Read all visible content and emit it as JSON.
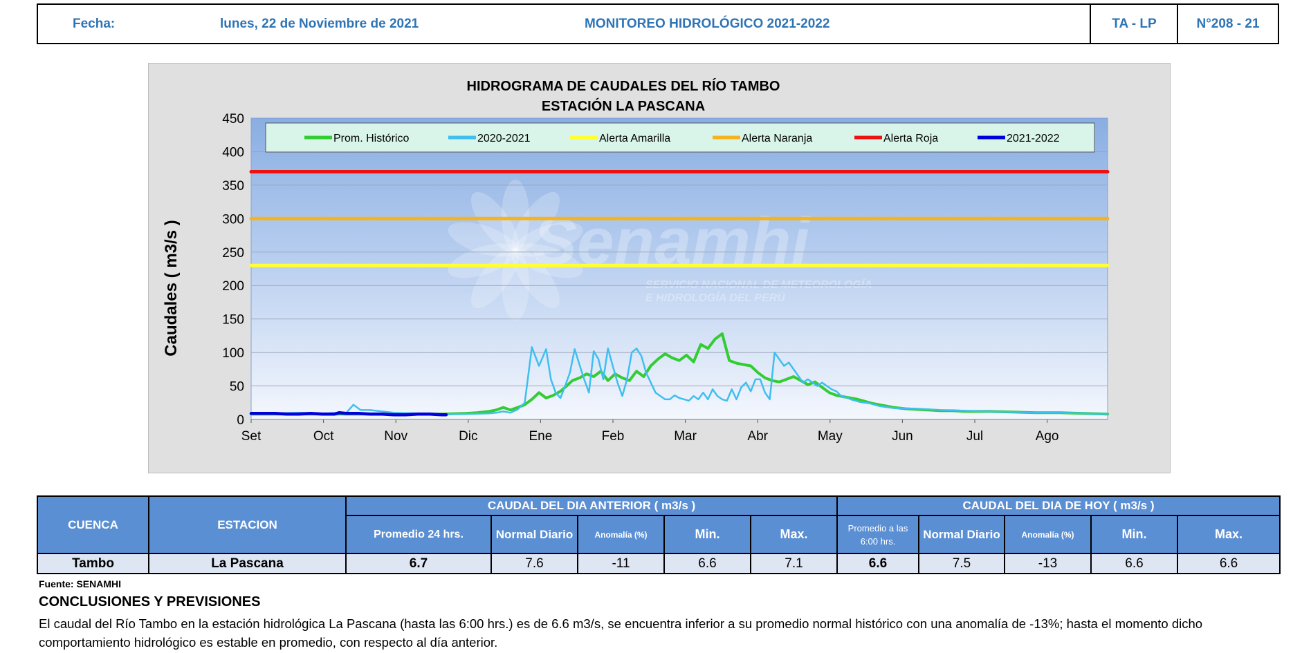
{
  "header": {
    "fecha_label": "Fecha:",
    "fecha_value": "lunes, 22 de Noviembre de 2021",
    "title": "MONITOREO HIDROLÓGICO 2021-2022",
    "code": "TA - LP",
    "number": "N°208 - 21"
  },
  "chart_data": {
    "type": "line",
    "title_line1": "HIDROGRAMA DE CAUDALES DEL RÍO TAMBO",
    "title_line2": "ESTACIÓN LA PASCANA",
    "ylabel": "Caudales ( m3/s )",
    "ylim": [
      0,
      450
    ],
    "yticks": [
      0,
      50,
      100,
      150,
      200,
      250,
      300,
      350,
      400,
      450
    ],
    "xticks": [
      "Set",
      "Oct",
      "Nov",
      "Dic",
      "Ene",
      "Feb",
      "Mar",
      "Abr",
      "May",
      "Jun",
      "Jul",
      "Ago"
    ],
    "xlim_days": [
      0,
      360
    ],
    "watermark": "Senamhi",
    "watermark_sub1": "SERVICIO NACIONAL DE METEOROLOGÍA",
    "watermark_sub2": "E HIDROLOGÍA DEL PERÚ",
    "legend_position": "top",
    "grid": true,
    "series": [
      {
        "name": "Prom. Histórico",
        "color": "#33cc33",
        "width": 4,
        "x": [
          0,
          30,
          60,
          80,
          90,
          95,
          100,
          103,
          106,
          109,
          112,
          115,
          118,
          121,
          124,
          127,
          130,
          132,
          135,
          138,
          141,
          144,
          147,
          150,
          153,
          156,
          159,
          162,
          165,
          168,
          171,
          174,
          177,
          180,
          183,
          186,
          189,
          192,
          195,
          198,
          201,
          204,
          207,
          210,
          213,
          216,
          219,
          222,
          225,
          228,
          231,
          234,
          237,
          240,
          243,
          246,
          249,
          252,
          255,
          258,
          261,
          264,
          267,
          270,
          275,
          280,
          285,
          290,
          295,
          300,
          310,
          320,
          330,
          340,
          350,
          360
        ],
        "y": [
          8,
          8,
          8,
          8,
          9,
          10,
          12,
          14,
          18,
          14,
          18,
          22,
          30,
          40,
          32,
          36,
          42,
          48,
          58,
          62,
          68,
          64,
          72,
          58,
          68,
          62,
          58,
          72,
          64,
          80,
          90,
          98,
          92,
          88,
          96,
          86,
          112,
          106,
          120,
          128,
          88,
          84,
          82,
          80,
          70,
          62,
          58,
          56,
          60,
          64,
          58,
          52,
          56,
          48,
          40,
          36,
          34,
          32,
          30,
          27,
          24,
          22,
          20,
          18,
          16,
          15,
          14,
          13,
          13,
          12,
          12,
          11,
          10,
          10,
          9,
          8
        ]
      },
      {
        "name": "2020-2021",
        "color": "#3fbfef",
        "width": 2.5,
        "x": [
          0,
          10,
          20,
          30,
          40,
          43,
          46,
          50,
          55,
          60,
          70,
          80,
          90,
          100,
          103,
          106,
          109,
          112,
          115,
          118,
          121,
          124,
          126,
          128,
          130,
          132,
          134,
          136,
          138,
          140,
          142,
          144,
          146,
          148,
          150,
          152,
          154,
          156,
          158,
          160,
          162,
          164,
          166,
          168,
          170,
          172,
          174,
          176,
          178,
          180,
          182,
          184,
          186,
          188,
          190,
          192,
          194,
          196,
          198,
          200,
          202,
          204,
          206,
          208,
          210,
          212,
          214,
          216,
          218,
          220,
          222,
          224,
          226,
          228,
          230,
          232,
          234,
          236,
          238,
          240,
          242,
          244,
          246,
          248,
          250,
          252,
          254,
          256,
          258,
          260,
          262,
          264,
          266,
          268,
          270,
          280,
          290,
          300,
          310,
          320,
          330,
          340,
          350,
          360
        ],
        "y": [
          9,
          9,
          10,
          9,
          10,
          22,
          14,
          14,
          12,
          10,
          9,
          8,
          8,
          9,
          10,
          12,
          10,
          15,
          25,
          108,
          80,
          105,
          60,
          40,
          32,
          50,
          70,
          105,
          82,
          60,
          40,
          102,
          90,
          60,
          106,
          80,
          55,
          35,
          60,
          100,
          106,
          95,
          70,
          55,
          40,
          35,
          30,
          30,
          36,
          32,
          30,
          28,
          35,
          30,
          40,
          30,
          45,
          35,
          30,
          28,
          45,
          30,
          48,
          55,
          42,
          60,
          60,
          40,
          30,
          100,
          90,
          80,
          85,
          75,
          65,
          55,
          60,
          55,
          50,
          55,
          50,
          45,
          42,
          35,
          33,
          30,
          28,
          26,
          25,
          24,
          22,
          20,
          19,
          18,
          17,
          16,
          14,
          13,
          12,
          11,
          10,
          10,
          9,
          8
        ]
      },
      {
        "name": "Alerta Amarilla",
        "color": "#ffff33",
        "width": 5,
        "x": [
          0,
          360
        ],
        "y": [
          230,
          230
        ]
      },
      {
        "name": "Alerta Naranja",
        "color": "#f5b31f",
        "width": 5,
        "x": [
          0,
          360
        ],
        "y": [
          300,
          300
        ]
      },
      {
        "name": "Alerta Roja",
        "color": "#ee1111",
        "width": 5,
        "x": [
          0,
          360
        ],
        "y": [
          370,
          370
        ]
      },
      {
        "name": "2021-2022",
        "color": "#0000dd",
        "width": 4.5,
        "x": [
          0,
          5,
          10,
          15,
          20,
          25,
          30,
          35,
          37,
          40,
          45,
          50,
          55,
          60,
          65,
          70,
          75,
          80,
          82
        ],
        "y": [
          9,
          9,
          9,
          8,
          8,
          9,
          8,
          8,
          10,
          9,
          9,
          8,
          8,
          7,
          7,
          8,
          8,
          7,
          7
        ]
      }
    ]
  },
  "table": {
    "h_cuenca": "CUENCA",
    "h_estacion": "ESTACION",
    "h_anterior": "CAUDAL DEL DIA ANTERIOR ( m3/s )",
    "h_hoy": "CAUDAL DEL DIA DE HOY ( m3/s )",
    "h_prom24": "Promedio  24 hrs.",
    "h_normal1": "Normal Diario",
    "h_anom1": "Anomalía  (%)",
    "h_min1": "Min.",
    "h_max1": "Max.",
    "h_prom6_line1": "Promedio a las",
    "h_prom6_line2": "6:00  hrs.",
    "h_normal2": "Normal Diario",
    "h_anom2": "Anomalía  (%)",
    "h_min2": "Min.",
    "h_max2": "Max.",
    "row": {
      "cuenca": "Tambo",
      "estacion": "La Pascana",
      "prom24": "6.7",
      "normal1": "7.6",
      "anom1": "-11",
      "min1": "6.6",
      "max1": "7.1",
      "prom6": "6.6",
      "normal2": "7.5",
      "anom2": "-13",
      "min2": "6.6",
      "max2": "6.6"
    }
  },
  "fuente": "Fuente:  SENAMHI",
  "conclusiones_title": "CONCLUSIONES Y PREVISIONES",
  "conclusiones_text": "El caudal del Río Tambo en la estación hidrológica La Pascana (hasta las 6:00 hrs.) es de 6.6 m3/s,  se encuentra inferior a su promedio normal histórico con una anomalía de -13%; hasta el momento dicho comportamiento hidrológico es estable en promedio, con respecto al día anterior."
}
